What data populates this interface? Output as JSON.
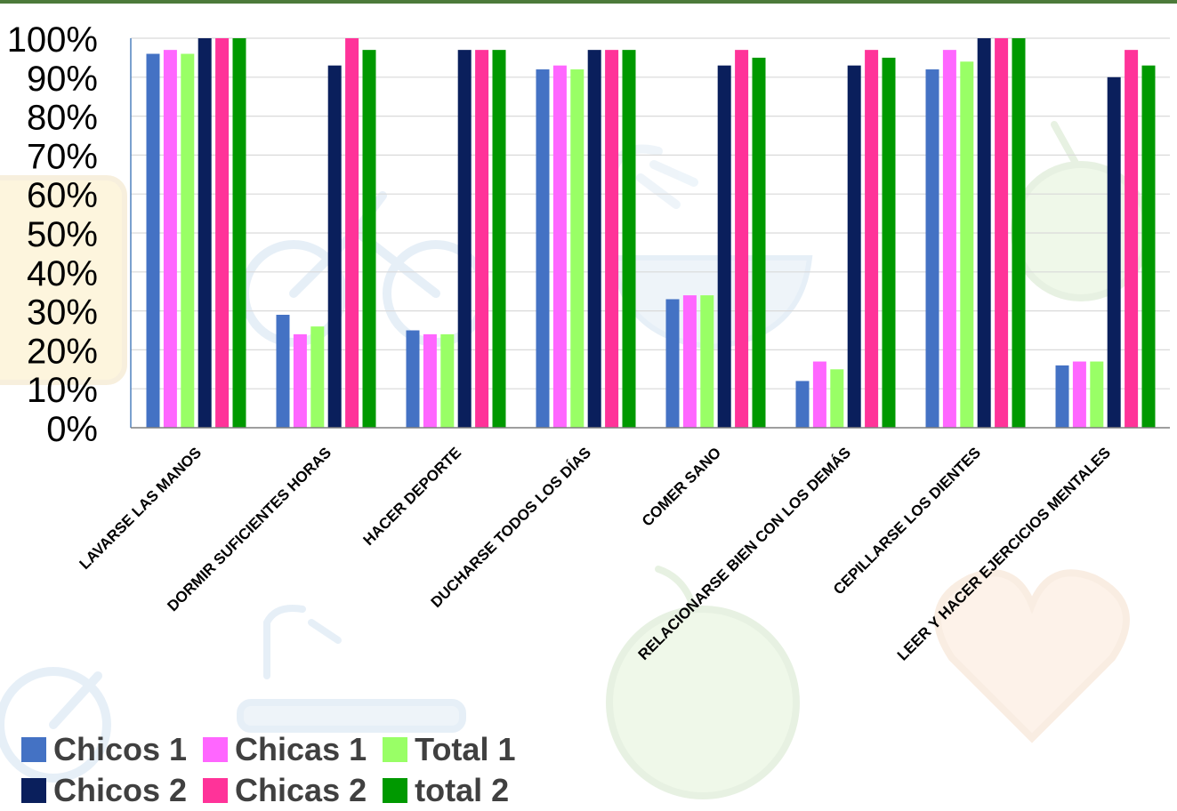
{
  "chart_data": {
    "type": "bar",
    "title": "",
    "xlabel": "",
    "ylabel": "",
    "ylim": [
      0,
      100
    ],
    "y_ticks": [
      "0%",
      "10%",
      "20%",
      "30%",
      "40%",
      "50%",
      "60%",
      "70%",
      "80%",
      "90%",
      "100%"
    ],
    "grid": "horizontal",
    "legend_position": "bottom-left",
    "categories": [
      "LAVARSE LAS MANOS",
      "DORMIR SUFICIENTES HORAS",
      "HACER DEPORTE",
      "DUCHARSE TODOS LOS DÍAS",
      "COMER SANO",
      "RELACIONARSE BIEN CON LOS DEMÁS",
      "CEPILLARSE LOS DIENTES",
      "LEER Y HACER EJERCICIOS MENTALES"
    ],
    "series": [
      {
        "name": "Chicos 1",
        "color": "#4472c4",
        "values": [
          96,
          29,
          25,
          92,
          33,
          12,
          92,
          16
        ]
      },
      {
        "name": "Chicas 1",
        "color": "#ff66ff",
        "values": [
          97,
          24,
          24,
          93,
          34,
          17,
          97,
          17
        ]
      },
      {
        "name": "Total 1",
        "color": "#99ff66",
        "values": [
          96,
          26,
          24,
          92,
          34,
          15,
          94,
          17
        ]
      },
      {
        "name": "Chicos 2",
        "color": "#0a1f5c",
        "values": [
          100,
          93,
          97,
          97,
          93,
          93,
          100,
          90
        ]
      },
      {
        "name": "Chicas 2",
        "color": "#ff3399",
        "values": [
          100,
          100,
          97,
          97,
          97,
          97,
          100,
          97
        ]
      },
      {
        "name": "total 2",
        "color": "#009900",
        "values": [
          100,
          97,
          97,
          97,
          95,
          95,
          100,
          93
        ]
      }
    ]
  }
}
